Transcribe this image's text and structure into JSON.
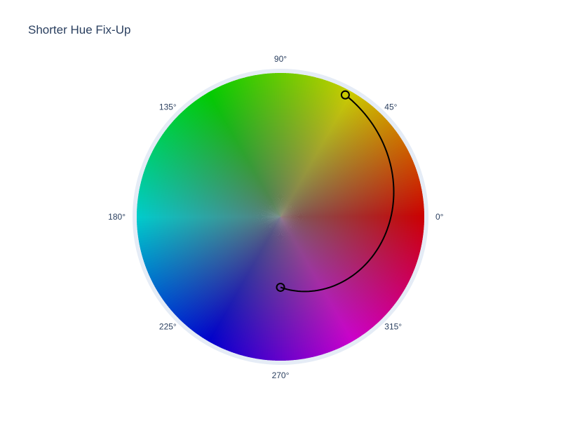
{
  "chart_data": {
    "type": "scatter",
    "subtype": "polar",
    "title": "Shorter Hue Fix-Up",
    "angular_axis": {
      "unit": "degrees",
      "direction": "counterclockwise",
      "rotation": 0,
      "tick_values": [
        0,
        45,
        90,
        135,
        180,
        225,
        270,
        315
      ],
      "tick_labels": [
        "0°",
        "45°",
        "90°",
        "135°",
        "180°",
        "225°",
        "270°",
        "315°"
      ]
    },
    "radial_axis": {
      "range": [
        0,
        1
      ],
      "visible": false
    },
    "background": "hue-saturation color wheel",
    "points": [
      {
        "theta": 62,
        "r": 0.96
      },
      {
        "theta": 270,
        "r": 0.49
      }
    ],
    "path": {
      "description": "shorter hue interpolation from the first point to the second point",
      "color": "#000000"
    },
    "marker": {
      "fill": "#c8c800",
      "fill_inner": "#ffffff00",
      "border": "#000000"
    },
    "colors": {
      "axis_ring": "#e5ecf6",
      "text": "#2a3f5f"
    }
  }
}
